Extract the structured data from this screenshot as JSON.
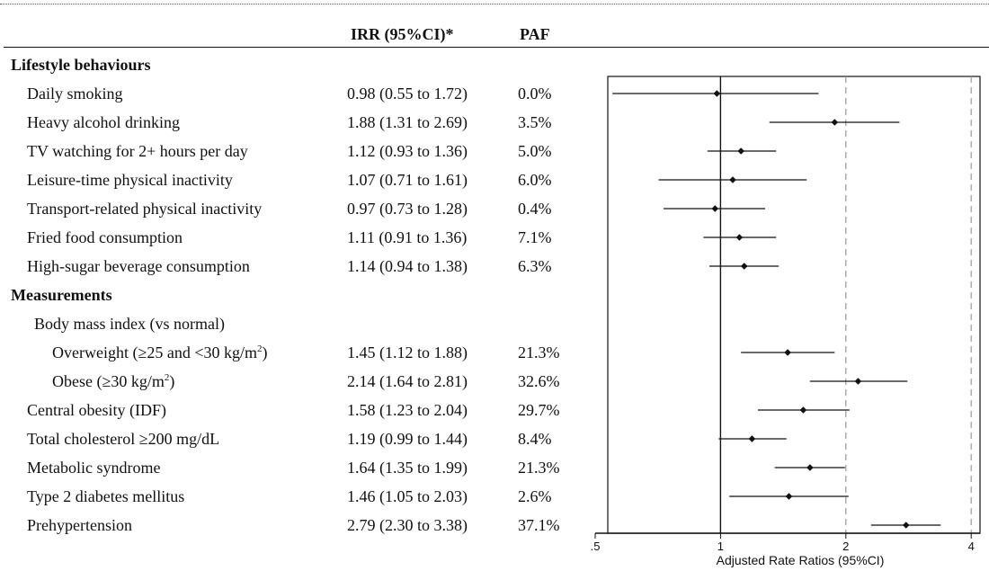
{
  "headers": {
    "irr": "IRR (95%CI)*",
    "paf": "PAF"
  },
  "rows": [
    {
      "type": "section",
      "label": "Lifestyle behaviours"
    },
    {
      "type": "item",
      "indent": 1,
      "label": "Daily smoking",
      "irr": "0.98 (0.55 to 1.72)",
      "paf": "0.0%"
    },
    {
      "type": "item",
      "indent": 1,
      "label": "Heavy alcohol drinking",
      "irr": "1.88 (1.31 to 2.69)",
      "paf": "3.5%"
    },
    {
      "type": "item",
      "indent": 1,
      "label": "TV watching for 2+ hours per day",
      "irr": "1.12 (0.93 to 1.36)",
      "paf": "5.0%"
    },
    {
      "type": "item",
      "indent": 1,
      "label": "Leisure-time physical inactivity",
      "irr": "1.07 (0.71 to 1.61)",
      "paf": "6.0%"
    },
    {
      "type": "item",
      "indent": 1,
      "label": "Transport-related physical inactivity",
      "irr": "0.97 (0.73 to 1.28)",
      "paf": "0.4%"
    },
    {
      "type": "item",
      "indent": 1,
      "label": "Fried food consumption",
      "irr": "1.11 (0.91 to 1.36)",
      "paf": "7.1%"
    },
    {
      "type": "item",
      "indent": 1,
      "label": "High-sugar beverage consumption",
      "irr": "1.14 (0.94 to 1.38)",
      "paf": "6.3%"
    },
    {
      "type": "section",
      "label": "Measurements"
    },
    {
      "type": "item",
      "indent": 2,
      "label": "Body mass index (vs normal)"
    },
    {
      "type": "item",
      "indent": 3,
      "label": "Overweight (≥25 and <30 kg/m",
      "label_sup": "2",
      "label_tail": ")",
      "irr": "1.45 (1.12 to 1.88)",
      "paf": "21.3%"
    },
    {
      "type": "item",
      "indent": 3,
      "label": "Obese (≥30 kg/m",
      "label_sup": "2",
      "label_tail": ")",
      "irr": "2.14 (1.64 to 2.81)",
      "paf": "32.6%"
    },
    {
      "type": "item",
      "indent": 1,
      "label": "Central obesity (IDF)",
      "irr": "1.58 (1.23 to 2.04)",
      "paf": "29.7%"
    },
    {
      "type": "item",
      "indent": 1,
      "label": "Total cholesterol ≥200 mg/dL",
      "irr": "1.19 (0.99 to 1.44)",
      "paf": "8.4%"
    },
    {
      "type": "item",
      "indent": 1,
      "label": "Metabolic syndrome",
      "irr": "1.64 (1.35 to 1.99)",
      "paf": "21.3%"
    },
    {
      "type": "item",
      "indent": 1,
      "label": "Type 2 diabetes mellitus",
      "irr": "1.46 (1.05 to 2.03)",
      "paf": "2.6%"
    },
    {
      "type": "item",
      "indent": 1,
      "label": "Prehypertension",
      "irr": "2.79 (2.30 to 3.38)",
      "paf": "37.1%"
    }
  ],
  "chart_data": {
    "type": "scatter",
    "xscale": "log",
    "xlim": [
      0.5,
      4.2
    ],
    "xticks": [
      0.5,
      1,
      2,
      4
    ],
    "xtick_labels": [
      ".5",
      "1",
      "2",
      "4"
    ],
    "xlabel": "Adjusted Rate Ratios (95%CI)",
    "reference_line": 1,
    "dashed_lines": [
      2,
      4
    ],
    "points": [
      {
        "label": "Daily smoking",
        "estimate": 0.98,
        "lower": 0.55,
        "upper": 1.72
      },
      {
        "label": "Heavy alcohol drinking",
        "estimate": 1.88,
        "lower": 1.31,
        "upper": 2.69
      },
      {
        "label": "TV watching for 2+ hours per day",
        "estimate": 1.12,
        "lower": 0.93,
        "upper": 1.36
      },
      {
        "label": "Leisure-time physical inactivity",
        "estimate": 1.07,
        "lower": 0.71,
        "upper": 1.61
      },
      {
        "label": "Transport-related physical inactivity",
        "estimate": 0.97,
        "lower": 0.73,
        "upper": 1.28
      },
      {
        "label": "Fried food consumption",
        "estimate": 1.11,
        "lower": 0.91,
        "upper": 1.36
      },
      {
        "label": "High-sugar beverage consumption",
        "estimate": 1.14,
        "lower": 0.94,
        "upper": 1.38
      },
      {
        "label": "Overweight",
        "estimate": 1.45,
        "lower": 1.12,
        "upper": 1.88
      },
      {
        "label": "Obese",
        "estimate": 2.14,
        "lower": 1.64,
        "upper": 2.81
      },
      {
        "label": "Central obesity (IDF)",
        "estimate": 1.58,
        "lower": 1.23,
        "upper": 2.04
      },
      {
        "label": "Total cholesterol ≥200 mg/dL",
        "estimate": 1.19,
        "lower": 0.99,
        "upper": 1.44
      },
      {
        "label": "Metabolic syndrome",
        "estimate": 1.64,
        "lower": 1.35,
        "upper": 1.99
      },
      {
        "label": "Type 2 diabetes mellitus",
        "estimate": 1.46,
        "lower": 1.05,
        "upper": 2.03
      },
      {
        "label": "Prehypertension",
        "estimate": 2.79,
        "lower": 2.3,
        "upper": 3.38
      }
    ]
  }
}
